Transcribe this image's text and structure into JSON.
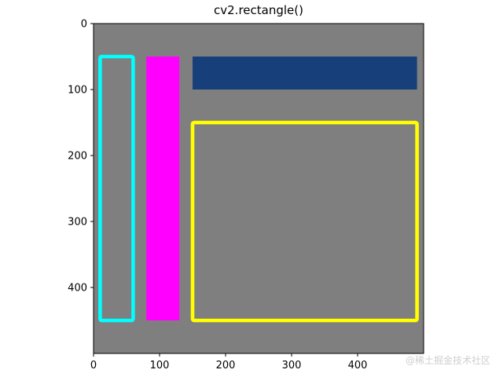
{
  "chart_data": {
    "type": "image",
    "title": "cv2.rectangle()",
    "xlabel": "",
    "ylabel": "",
    "xlim": [
      0,
      500
    ],
    "ylim": [
      500,
      0
    ],
    "xticks": [
      0,
      100,
      200,
      300,
      400
    ],
    "yticks": [
      0,
      100,
      200,
      300,
      400
    ],
    "grid": false,
    "legend": "none",
    "background_color": "#7f7f7f",
    "rectangles": [
      {
        "color": "#00ffff",
        "fill": false,
        "x1": 10,
        "y1": 50,
        "x2": 60,
        "y2": 450
      },
      {
        "color": "#ff00ff",
        "fill": true,
        "x1": 80,
        "y1": 50,
        "x2": 130,
        "y2": 450
      },
      {
        "color": "#17407a",
        "fill": true,
        "x1": 150,
        "y1": 50,
        "x2": 490,
        "y2": 100
      },
      {
        "color": "#ffff00",
        "fill": false,
        "x1": 150,
        "y1": 150,
        "x2": 490,
        "y2": 450
      }
    ]
  },
  "watermark": "@稀土掘金技术社区"
}
